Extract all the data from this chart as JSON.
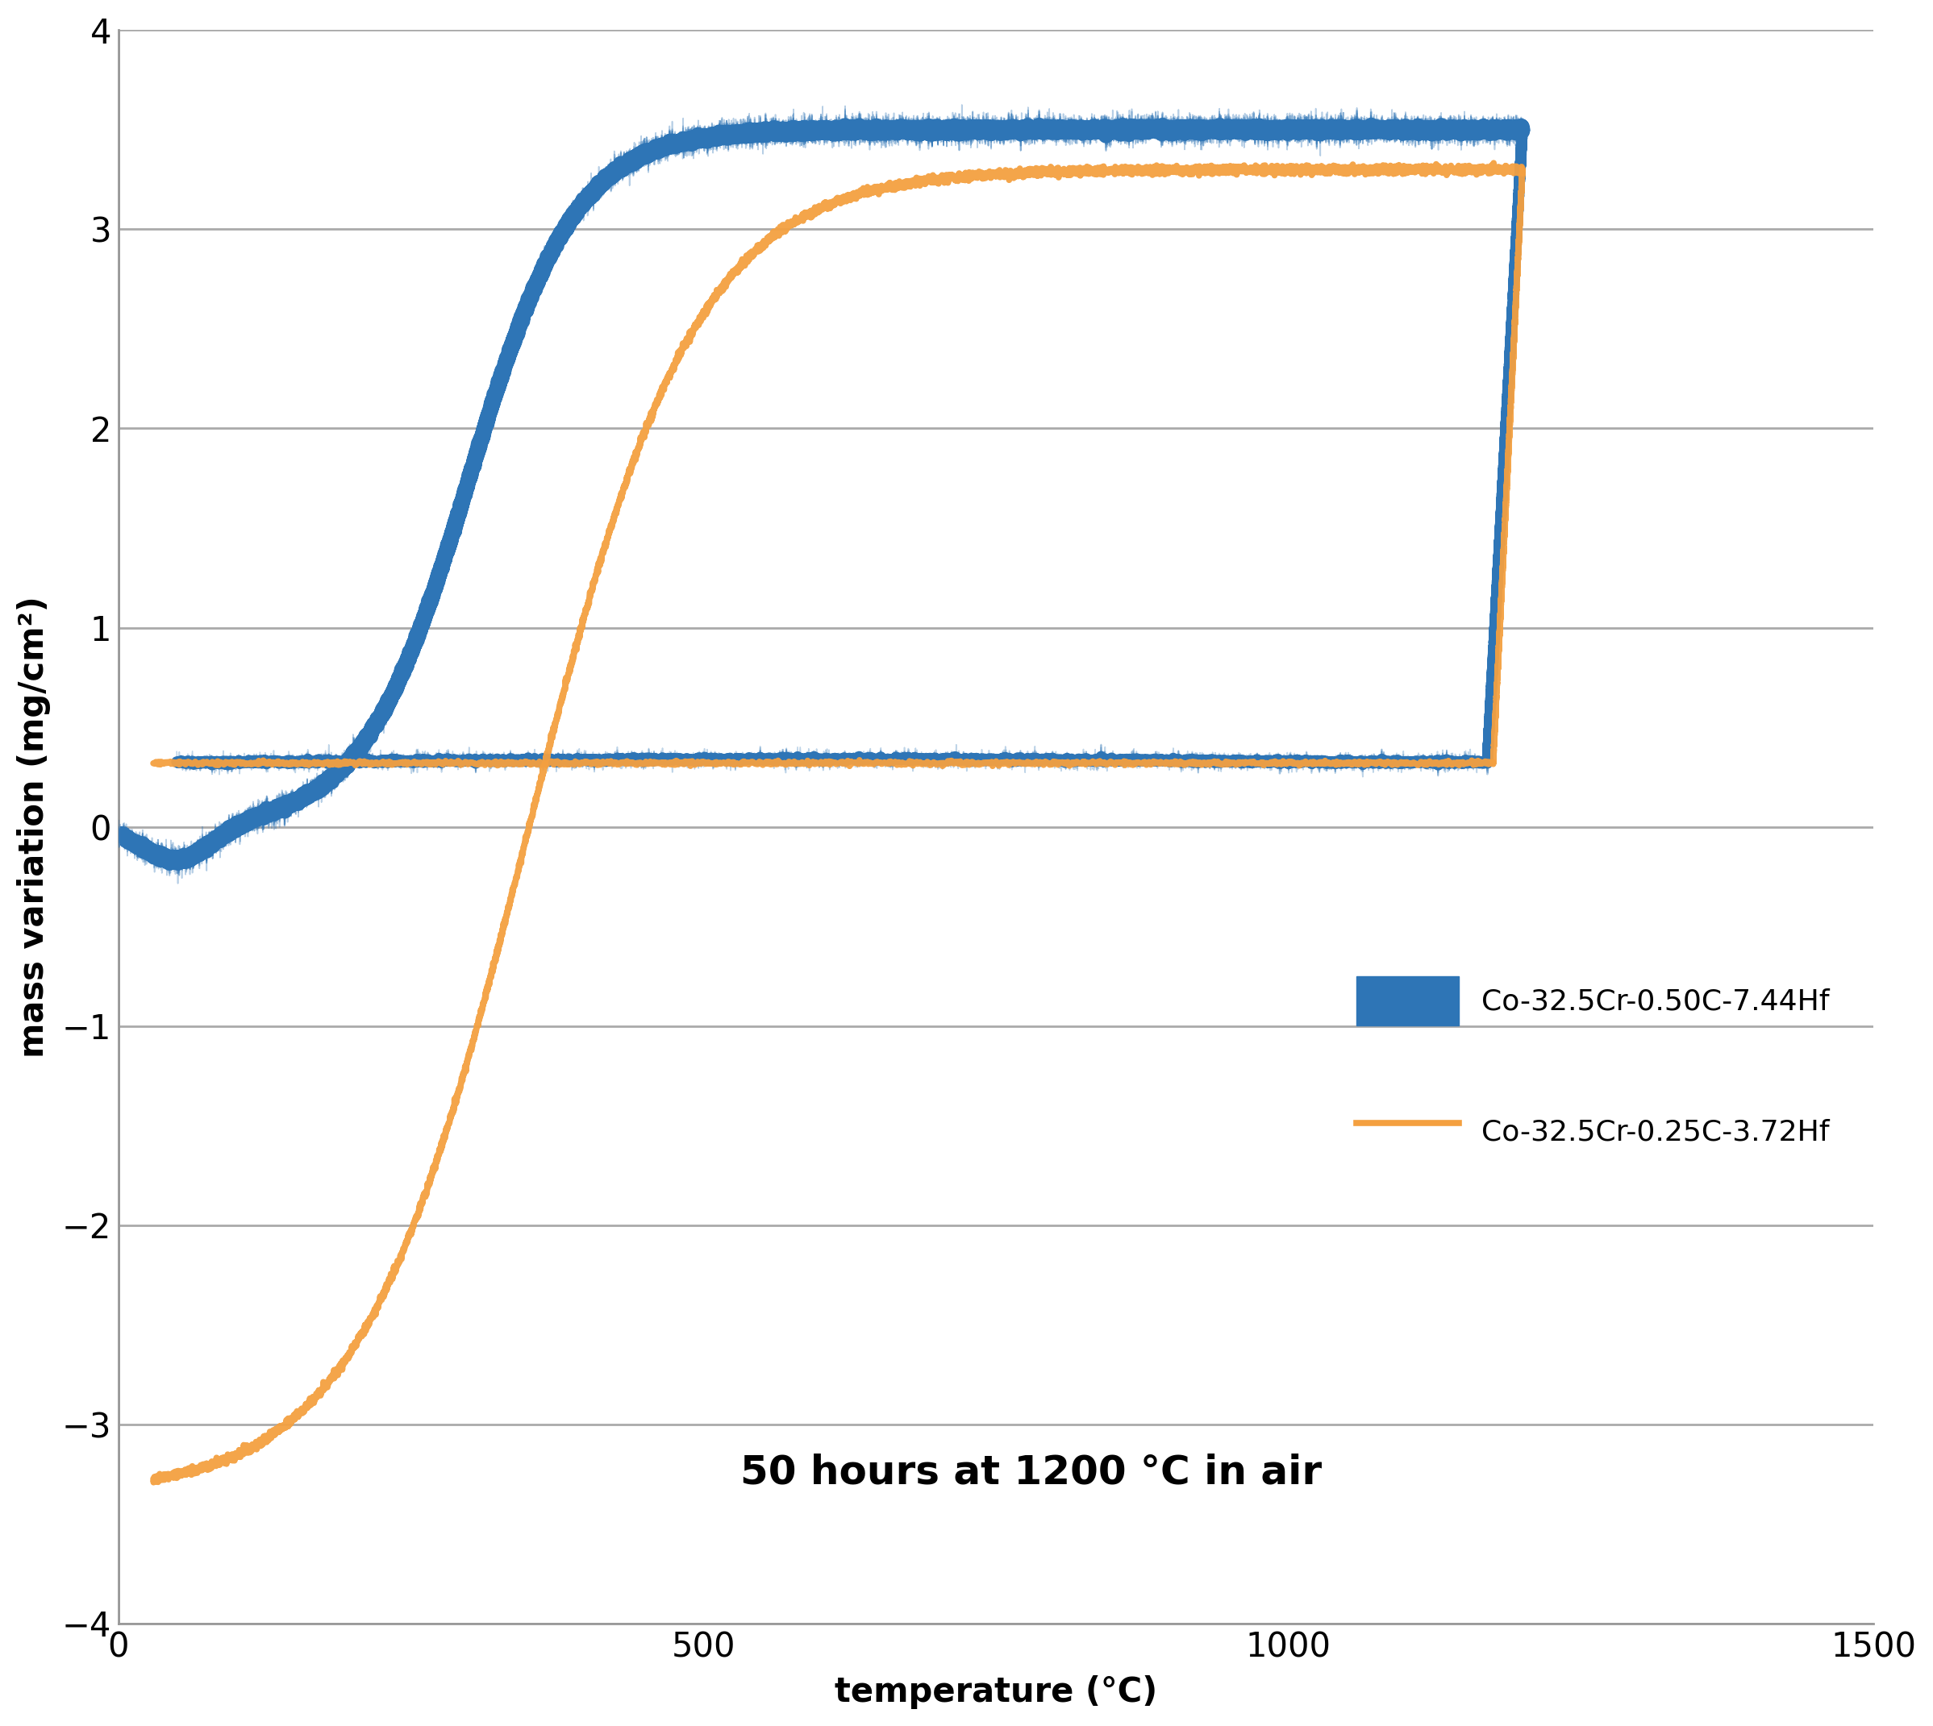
{
  "xlabel": "temperature (°C)",
  "ylabel": "mass variation (mg/cm²)",
  "xlim": [
    0,
    1500
  ],
  "ylim": [
    -4,
    4
  ],
  "xticks": [
    0,
    500,
    1000,
    1500
  ],
  "yticks": [
    -4,
    -3,
    -2,
    -1,
    0,
    1,
    2,
    3,
    4
  ],
  "blue_color": "#2E75B6",
  "orange_color": "#F4A040",
  "grid_color": "#AAAAAA",
  "legend1_label": "Co-32.5Cr-0.50C-7.44Hf",
  "legend2_label": "Co-32.5Cr-0.25C-3.72Hf",
  "annotation": "50 hours at 1200 °C in air",
  "axis_label_fontsize": 30,
  "tick_fontsize": 30,
  "legend_fontsize": 26,
  "annotation_fontsize": 36
}
